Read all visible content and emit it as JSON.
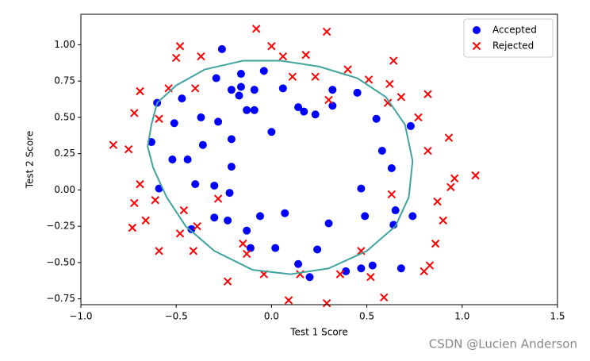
{
  "chart_data": {
    "type": "scatter",
    "x_label": "Test 1 Score",
    "y_label": "Test 2 Score",
    "xlim": [
      -1.0,
      1.5
    ],
    "ylim": [
      -0.79,
      1.21
    ],
    "xticks": [
      {
        "value": -1.0,
        "label": "−1.0"
      },
      {
        "value": -0.5,
        "label": "−0.5"
      },
      {
        "value": 0.0,
        "label": "0.0"
      },
      {
        "value": 0.5,
        "label": "0.5"
      },
      {
        "value": 1.0,
        "label": "1.0"
      },
      {
        "value": 1.5,
        "label": "1.5"
      }
    ],
    "yticks": [
      {
        "value": -0.75,
        "label": "−0.75"
      },
      {
        "value": -0.5,
        "label": "−0.50"
      },
      {
        "value": -0.25,
        "label": "−0.25"
      },
      {
        "value": 0.0,
        "label": "0.00"
      },
      {
        "value": 0.25,
        "label": "0.25"
      },
      {
        "value": 0.5,
        "label": "0.50"
      },
      {
        "value": 0.75,
        "label": "0.75"
      },
      {
        "value": 1.0,
        "label": "1.00"
      }
    ],
    "legend": "upper right",
    "series": [
      {
        "name": "Accepted",
        "color": "#0000ff",
        "marker": "o",
        "x": [
          -0.26,
          -0.04,
          -0.16,
          -0.29,
          -0.16,
          -0.21,
          -0.09,
          0.06,
          0.32,
          0.45,
          -0.17,
          -0.47,
          -0.6,
          0.14,
          0.32,
          -0.13,
          -0.09,
          0.17,
          0.23,
          -0.37,
          -0.51,
          -0.28,
          0.55,
          0.73,
          0.0,
          -0.21,
          -0.63,
          -0.36,
          0.58,
          -0.52,
          -0.44,
          -0.21,
          0.63,
          -0.4,
          -0.3,
          -0.59,
          0.47,
          -0.22,
          0.65,
          -0.3,
          -0.23,
          -0.06,
          0.07,
          0.49,
          0.74,
          0.3,
          0.64,
          -0.42,
          -0.13,
          -0.11,
          0.02,
          0.24,
          0.14,
          0.47,
          0.53,
          0.68,
          0.39,
          0.2
        ],
        "y": [
          0.97,
          0.82,
          0.8,
          0.77,
          0.71,
          0.69,
          0.69,
          0.7,
          0.69,
          0.67,
          0.65,
          0.63,
          0.6,
          0.57,
          0.58,
          0.55,
          0.55,
          0.54,
          0.52,
          0.5,
          0.46,
          0.47,
          0.49,
          0.44,
          0.4,
          0.35,
          0.33,
          0.31,
          0.27,
          0.21,
          0.21,
          0.16,
          0.15,
          0.04,
          0.03,
          0.01,
          0.01,
          -0.02,
          -0.14,
          -0.19,
          -0.21,
          -0.18,
          -0.16,
          -0.18,
          -0.18,
          -0.23,
          -0.24,
          -0.27,
          -0.28,
          -0.4,
          -0.4,
          -0.41,
          -0.51,
          -0.54,
          -0.52,
          -0.54,
          -0.56,
          -0.6
        ]
      },
      {
        "name": "Rejected",
        "color": "#ff0000",
        "marker": "x",
        "x": [
          -0.08,
          0.29,
          -0.48,
          0.0,
          -0.5,
          -0.37,
          0.06,
          0.18,
          0.64,
          0.4,
          0.11,
          0.23,
          0.51,
          0.62,
          -0.69,
          -0.4,
          -0.54,
          0.68,
          0.82,
          0.61,
          0.3,
          -0.72,
          -0.59,
          0.77,
          0.93,
          -0.83,
          -0.75,
          0.82,
          1.07,
          0.96,
          -0.69,
          0.94,
          0.63,
          -0.28,
          -0.61,
          -0.72,
          0.87,
          -0.46,
          -0.66,
          0.9,
          -0.73,
          -0.39,
          -0.48,
          0.86,
          -0.15,
          -0.13,
          -0.59,
          -0.41,
          0.47,
          -0.04,
          0.15,
          0.36,
          0.83,
          0.8,
          0.52,
          -0.23,
          0.09,
          0.29,
          0.59
        ],
        "y": [
          1.11,
          1.09,
          0.99,
          0.99,
          0.91,
          0.92,
          0.92,
          0.93,
          0.89,
          0.83,
          0.78,
          0.78,
          0.76,
          0.73,
          0.68,
          0.7,
          0.7,
          0.64,
          0.66,
          0.6,
          0.62,
          0.53,
          0.49,
          0.5,
          0.36,
          0.31,
          0.28,
          0.27,
          0.1,
          0.08,
          0.04,
          0.02,
          -0.03,
          -0.06,
          -0.07,
          -0.09,
          -0.08,
          -0.14,
          -0.21,
          -0.21,
          -0.26,
          -0.25,
          -0.3,
          -0.37,
          -0.37,
          -0.44,
          -0.42,
          -0.42,
          -0.42,
          -0.58,
          -0.58,
          -0.58,
          -0.52,
          -0.56,
          -0.6,
          -0.63,
          -0.76,
          -0.78,
          -0.74
        ]
      }
    ],
    "boundary": {
      "color": "#3fa3a0",
      "x": [
        -0.63,
        -0.6,
        -0.5,
        -0.35,
        -0.15,
        0.05,
        0.25,
        0.45,
        0.6,
        0.7,
        0.74,
        0.72,
        0.65,
        0.5,
        0.3,
        0.1,
        -0.1,
        -0.3,
        -0.45,
        -0.55,
        -0.62,
        -0.65,
        -0.63
      ],
      "y": [
        0.45,
        0.6,
        0.72,
        0.83,
        0.89,
        0.89,
        0.85,
        0.77,
        0.64,
        0.45,
        0.2,
        -0.05,
        -0.25,
        -0.42,
        -0.54,
        -0.58,
        -0.55,
        -0.42,
        -0.25,
        -0.05,
        0.15,
        0.3,
        0.45
      ]
    }
  },
  "watermark": "CSDN @Lucien Anderson"
}
